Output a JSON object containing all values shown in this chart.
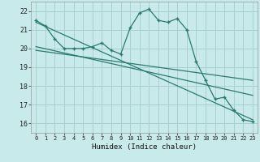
{
  "xlabel": "Humidex (Indice chaleur)",
  "bg_color": "#c8eaea",
  "grid_color": "#a8d0d0",
  "line_color": "#2a7a70",
  "xlim": [
    -0.5,
    23.5
  ],
  "ylim": [
    15.5,
    22.5
  ],
  "xticks": [
    0,
    1,
    2,
    3,
    4,
    5,
    6,
    7,
    8,
    9,
    10,
    11,
    12,
    13,
    14,
    15,
    16,
    17,
    18,
    19,
    20,
    21,
    22,
    23
  ],
  "yticks": [
    16,
    17,
    18,
    19,
    20,
    21,
    22
  ],
  "main_x": [
    0,
    1,
    2,
    3,
    4,
    5,
    6,
    7,
    8,
    9,
    10,
    11,
    12,
    13,
    14,
    15,
    16,
    17,
    18,
    19,
    20,
    21,
    22,
    23
  ],
  "main_y": [
    21.5,
    21.2,
    20.5,
    20.0,
    20.0,
    20.0,
    20.1,
    20.3,
    19.9,
    19.7,
    21.1,
    21.9,
    22.1,
    21.5,
    21.4,
    21.6,
    21.0,
    19.3,
    18.3,
    17.3,
    17.4,
    16.7,
    16.2,
    16.1
  ],
  "line1_x": [
    0,
    23
  ],
  "line1_y": [
    21.4,
    16.2
  ],
  "line2_x": [
    0,
    23
  ],
  "line2_y": [
    20.1,
    17.5
  ],
  "line3_x": [
    0,
    23
  ],
  "line3_y": [
    19.9,
    18.3
  ]
}
